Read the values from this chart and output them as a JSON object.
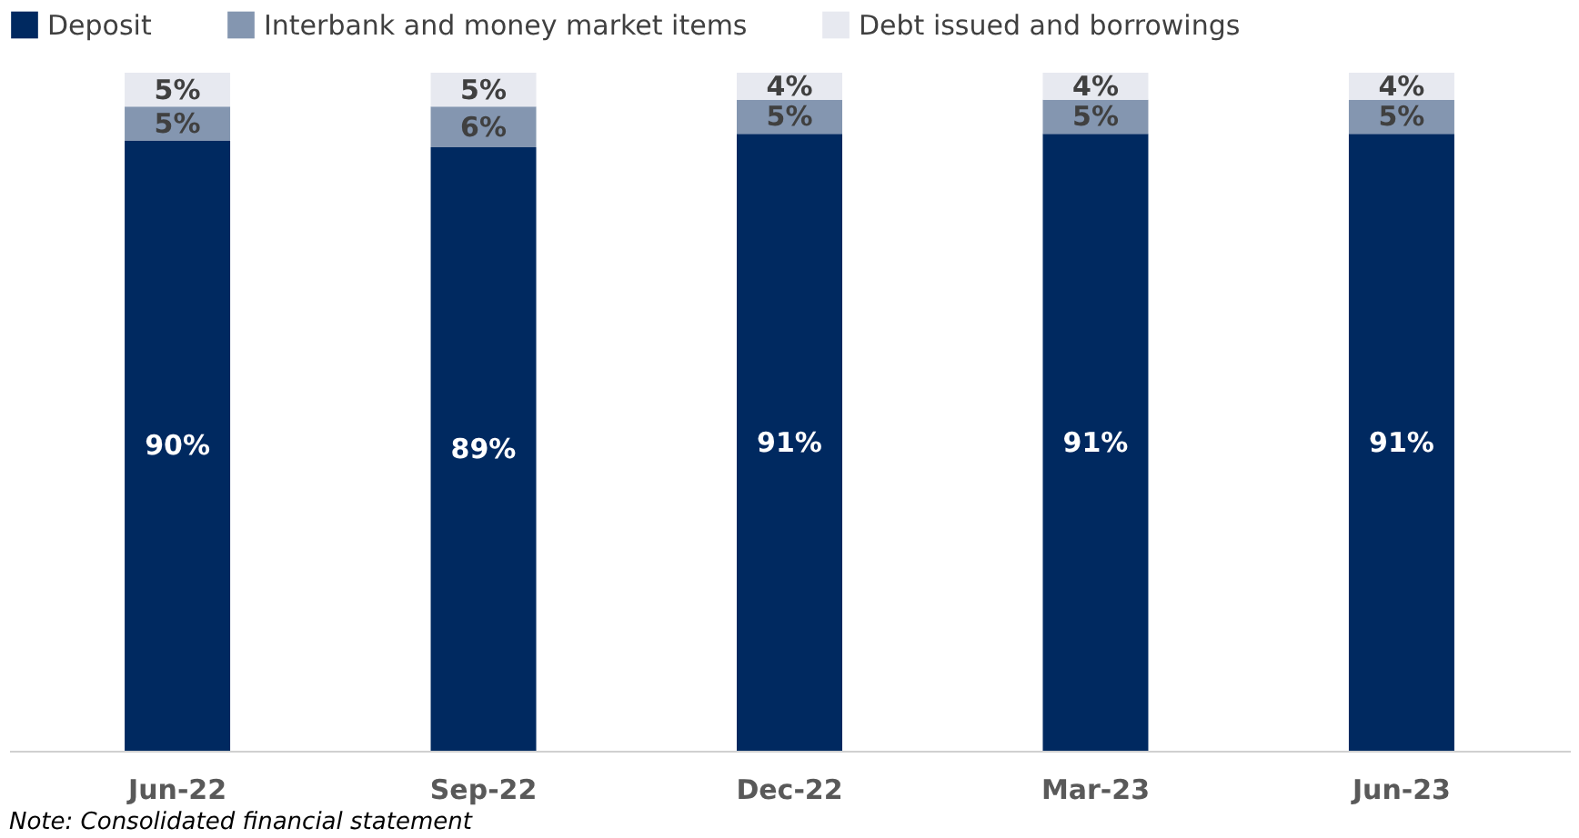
{
  "chart_data": {
    "type": "bar",
    "stacked": true,
    "categories": [
      "Jun-22",
      "Sep-22",
      "Dec-22",
      "Mar-23",
      "Jun-23"
    ],
    "series": [
      {
        "name": "Deposit",
        "color": "#002960",
        "values": [
          90,
          89,
          91,
          91,
          91
        ],
        "value_labels": [
          "90%",
          "89%",
          "91%",
          "91%",
          "91%"
        ]
      },
      {
        "name": "Interbank and money market items",
        "color": "#8496b0",
        "values": [
          5,
          6,
          5,
          5,
          5
        ],
        "value_labels": [
          "5%",
          "6%",
          "5%",
          "5%",
          "5%"
        ]
      },
      {
        "name": "Debt issued and borrowings",
        "color": "#e7e9f0",
        "values": [
          5,
          5,
          4,
          4,
          4
        ],
        "value_labels": [
          "5%",
          "5%",
          "4%",
          "4%",
          "4%"
        ]
      }
    ],
    "ylim": [
      0,
      100
    ],
    "tick_labels": "x",
    "grid": false,
    "legend": "top",
    "annotations": [
      "Note: Consolidated financial statement"
    ]
  }
}
